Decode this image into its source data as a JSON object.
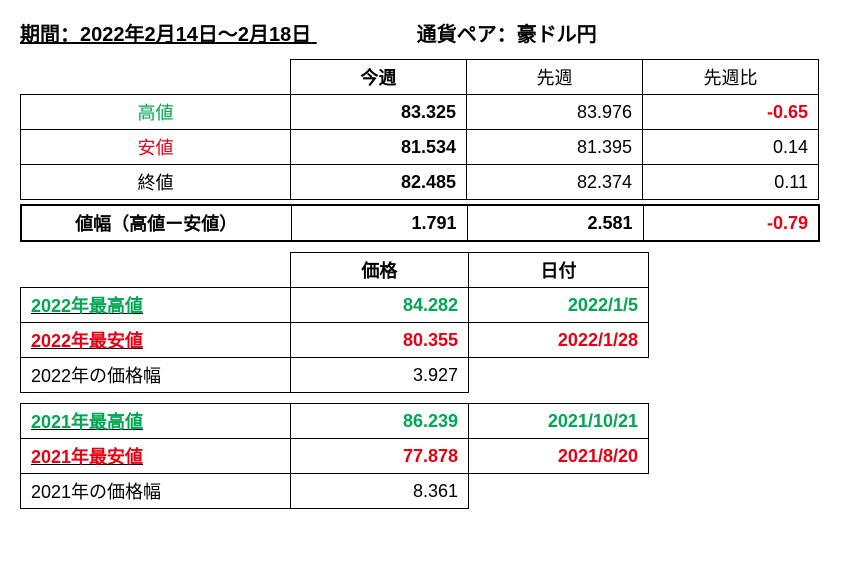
{
  "header": {
    "period_label": "期間：2022年2月14日～2月18日",
    "pair_label": "通貨ペア：豪ドル円"
  },
  "table1": {
    "headers": {
      "this_week": "今週",
      "last_week": "先週",
      "diff": "先週比"
    },
    "rows": [
      {
        "label": "高値",
        "label_color": "#00a651",
        "this_week": "83.325",
        "last_week": "83.976",
        "diff": "-0.65",
        "diff_color": "#e60012"
      },
      {
        "label": "安値",
        "label_color": "#e60012",
        "this_week": "81.534",
        "last_week": "81.395",
        "diff": "0.14",
        "diff_color": "#000000"
      },
      {
        "label": "終値",
        "label_color": "#000000",
        "this_week": "82.485",
        "last_week": "82.374",
        "diff": "0.11",
        "diff_color": "#000000"
      }
    ],
    "range_row": {
      "label": "値幅（高値ー安値）",
      "this_week": "1.791",
      "last_week": "2.581",
      "diff": "-0.79",
      "diff_color": "#e60012"
    }
  },
  "table2": {
    "headers": {
      "price": "価格",
      "date": "日付"
    },
    "rows": [
      {
        "label": "2022年最高値",
        "color": "#00a651",
        "price": "84.282",
        "date": "2022/1/5",
        "bold_underline": true
      },
      {
        "label": "2022年最安値",
        "color": "#e60012",
        "price": "80.355",
        "date": "2022/1/28",
        "bold_underline": true
      },
      {
        "label": "2022年の価格幅",
        "color": "#000000",
        "price": "3.927",
        "date": "",
        "bold_underline": false
      }
    ]
  },
  "table3": {
    "rows": [
      {
        "label": "2021年最高値",
        "color": "#00a651",
        "price": "86.239",
        "date": "2021/10/21",
        "bold_underline": true
      },
      {
        "label": "2021年最安値",
        "color": "#e60012",
        "price": "77.878",
        "date": "2021/8/20",
        "bold_underline": true
      },
      {
        "label": "2021年の価格幅",
        "color": "#000000",
        "price": "8.361",
        "date": "",
        "bold_underline": false
      }
    ]
  },
  "colors": {
    "green": "#00a651",
    "red": "#e60012",
    "black": "#000000"
  }
}
